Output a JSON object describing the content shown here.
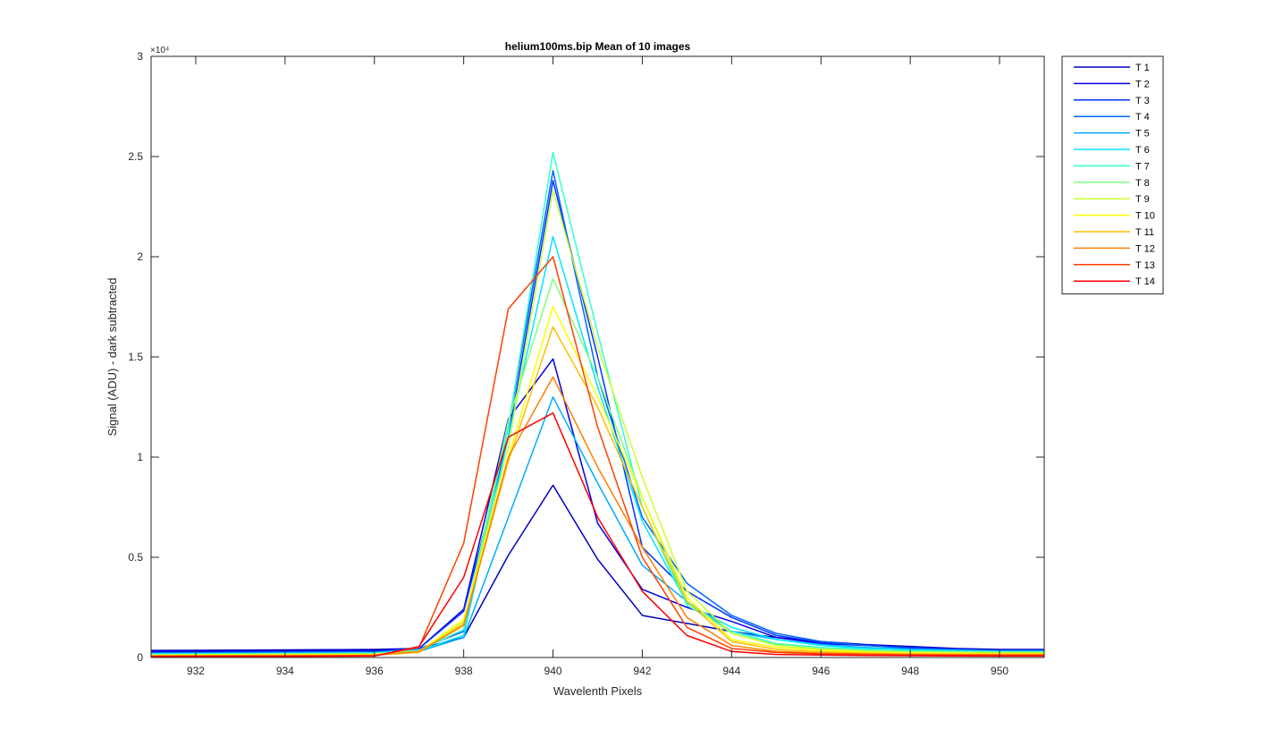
{
  "chart_data": {
    "type": "line",
    "title": "helium100ms.bip  Mean of 10 images",
    "xlabel": "Wavelenth Pixels",
    "ylabel": "Signal (ADU) - dark subtracted",
    "xlim": [
      931,
      951
    ],
    "ylim": [
      0,
      30000
    ],
    "x_ticks": [
      932,
      934,
      936,
      938,
      940,
      942,
      944,
      946,
      948,
      950
    ],
    "y_ticks": [
      0,
      5000,
      10000,
      15000,
      20000,
      25000,
      30000
    ],
    "y_tick_labels": [
      "0",
      "0.5",
      "1",
      "1.5",
      "2",
      "2.5",
      "3"
    ],
    "y_exponent_label": "×10⁴",
    "grid": false,
    "legend_position": "outside-right",
    "x": [
      931,
      932,
      933,
      934,
      935,
      936,
      937,
      938,
      939,
      940,
      941,
      942,
      943,
      944,
      945,
      946,
      947,
      948,
      949,
      950,
      951
    ],
    "series": [
      {
        "name": "T 1",
        "color": "#0000bf",
        "values": [
          350,
          360,
          370,
          380,
          390,
          400,
          450,
          1000,
          5100,
          8600,
          4900,
          2100,
          1700,
          1300,
          1000,
          800,
          650,
          550,
          450,
          400,
          400
        ]
      },
      {
        "name": "T 2",
        "color": "#0000e6",
        "values": [
          300,
          310,
          320,
          330,
          340,
          350,
          450,
          2400,
          11900,
          14900,
          6700,
          3400,
          2500,
          1800,
          1000,
          700,
          600,
          500,
          400,
          350,
          350
        ]
      },
      {
        "name": "T 3",
        "color": "#0033ff",
        "values": [
          250,
          260,
          270,
          280,
          290,
          300,
          450,
          2300,
          11000,
          23800,
          15000,
          5500,
          3300,
          2000,
          1100,
          750,
          600,
          500,
          400,
          350,
          350
        ]
      },
      {
        "name": "T 4",
        "color": "#0066ff",
        "values": [
          220,
          230,
          240,
          250,
          260,
          270,
          430,
          1300,
          11500,
          24300,
          14000,
          7000,
          3700,
          2100,
          1200,
          800,
          600,
          450,
          400,
          350,
          350
        ]
      },
      {
        "name": "T 5",
        "color": "#00aaff",
        "values": [
          200,
          210,
          220,
          230,
          240,
          250,
          300,
          1000,
          7000,
          13000,
          8700,
          4600,
          2800,
          1300,
          900,
          650,
          500,
          400,
          350,
          300,
          300
        ]
      },
      {
        "name": "T 6",
        "color": "#00e6ff",
        "values": [
          180,
          190,
          200,
          210,
          220,
          230,
          350,
          1100,
          11000,
          21000,
          13500,
          6800,
          2700,
          1500,
          900,
          600,
          450,
          380,
          330,
          300,
          300
        ]
      },
      {
        "name": "T 7",
        "color": "#33ffcc",
        "values": [
          160,
          170,
          180,
          190,
          200,
          210,
          350,
          1400,
          11500,
          25200,
          16200,
          7500,
          2600,
          1300,
          700,
          500,
          400,
          330,
          300,
          280,
          280
        ]
      },
      {
        "name": "T 8",
        "color": "#80ff80",
        "values": [
          140,
          150,
          160,
          170,
          180,
          190,
          330,
          1600,
          11800,
          18900,
          14000,
          8000,
          2800,
          1200,
          650,
          450,
          350,
          300,
          280,
          260,
          260
        ]
      },
      {
        "name": "T 9",
        "color": "#ccff33",
        "values": [
          120,
          130,
          140,
          150,
          160,
          170,
          300,
          1800,
          10500,
          23300,
          15500,
          9000,
          3300,
          1200,
          600,
          400,
          300,
          250,
          230,
          220,
          220
        ]
      },
      {
        "name": "T 10",
        "color": "#ffff00",
        "values": [
          100,
          110,
          120,
          130,
          140,
          150,
          280,
          1900,
          10000,
          17500,
          13000,
          8000,
          3000,
          900,
          500,
          350,
          280,
          230,
          210,
          200,
          200
        ]
      },
      {
        "name": "T 11",
        "color": "#ffbf00",
        "values": [
          90,
          95,
          100,
          105,
          110,
          120,
          250,
          1700,
          9800,
          16500,
          12500,
          7500,
          2800,
          800,
          400,
          280,
          220,
          190,
          170,
          160,
          160
        ]
      },
      {
        "name": "T 12",
        "color": "#ff8000",
        "values": [
          80,
          85,
          90,
          95,
          100,
          110,
          300,
          1600,
          10000,
          14000,
          9500,
          5500,
          2000,
          600,
          300,
          220,
          180,
          150,
          140,
          130,
          130
        ]
      },
      {
        "name": "T 13",
        "color": "#ff4000",
        "values": [
          60,
          65,
          70,
          75,
          80,
          90,
          500,
          5700,
          17400,
          20000,
          11500,
          5000,
          1500,
          450,
          250,
          180,
          150,
          130,
          120,
          110,
          110
        ]
      },
      {
        "name": "T 14",
        "color": "#ff0000",
        "values": [
          40,
          45,
          50,
          55,
          60,
          70,
          550,
          4000,
          11000,
          12200,
          7000,
          3300,
          1100,
          300,
          150,
          120,
          100,
          90,
          80,
          70,
          70
        ]
      }
    ]
  }
}
